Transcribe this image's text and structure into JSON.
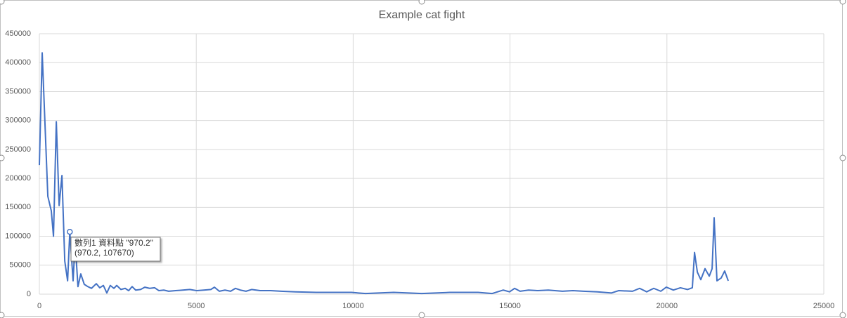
{
  "chart_data": {
    "type": "line",
    "title": "Example cat fight",
    "x": [
      0,
      90,
      270,
      380,
      450,
      540,
      630,
      720,
      810,
      900,
      970.2,
      1075,
      1140,
      1230,
      1320,
      1430,
      1545,
      1660,
      1815,
      1925,
      2040,
      2150,
      2260,
      2375,
      2465,
      2600,
      2735,
      2845,
      2955,
      3070,
      3225,
      3360,
      3515,
      3675,
      3810,
      3965,
      4120,
      4345,
      4570,
      4795,
      5020,
      5240,
      5465,
      5580,
      5735,
      5915,
      6095,
      6250,
      6405,
      6585,
      6765,
      7035,
      7370,
      7705,
      8155,
      8825,
      9945,
      10395,
      11290,
      12185,
      13080,
      13980,
      14425,
      14785,
      14985,
      15145,
      15320,
      15590,
      15885,
      16220,
      16670,
      17005,
      17340,
      17785,
      18235,
      18460,
      18905,
      19130,
      19355,
      19580,
      19805,
      19980,
      20205,
      20430,
      20655,
      20810,
      20880,
      20970,
      21080,
      21215,
      21350,
      21440,
      21505,
      21595,
      21730,
      21840,
      21955
    ],
    "values": [
      223000,
      417000,
      169000,
      144000,
      100000,
      298000,
      153000,
      205000,
      57000,
      23000,
      107670,
      23000,
      90000,
      13000,
      35000,
      17000,
      13000,
      10000,
      18000,
      11000,
      15000,
      2000,
      15000,
      10000,
      15000,
      8000,
      10000,
      6000,
      13000,
      7000,
      8000,
      12000,
      10000,
      11000,
      6000,
      7000,
      5000,
      6000,
      7000,
      8000,
      6000,
      7000,
      8000,
      12000,
      5000,
      7000,
      5000,
      10000,
      7000,
      5000,
      8000,
      6000,
      6000,
      5000,
      4000,
      3000,
      3000,
      1000,
      3000,
      1000,
      3000,
      3000,
      1000,
      7000,
      4000,
      10000,
      5000,
      7000,
      6000,
      7000,
      5000,
      6000,
      5000,
      4000,
      2000,
      6000,
      5000,
      10000,
      4000,
      10000,
      5000,
      12000,
      7000,
      11000,
      8000,
      11000,
      72000,
      38000,
      25000,
      44000,
      31000,
      44000,
      132000,
      23000,
      28000,
      40000,
      23000
    ],
    "color": "#4472c4",
    "xlim": [
      0,
      25000
    ],
    "xticks": [
      0,
      5000,
      10000,
      15000,
      20000,
      25000
    ],
    "ylim": [
      0,
      450000
    ],
    "yticks": [
      0,
      50000,
      100000,
      150000,
      200000,
      250000,
      300000,
      350000,
      400000,
      450000
    ],
    "grid": true,
    "tooltip": [
      "數列1 資料點 \"970.2\"",
      "(970.2, 107670)"
    ]
  }
}
